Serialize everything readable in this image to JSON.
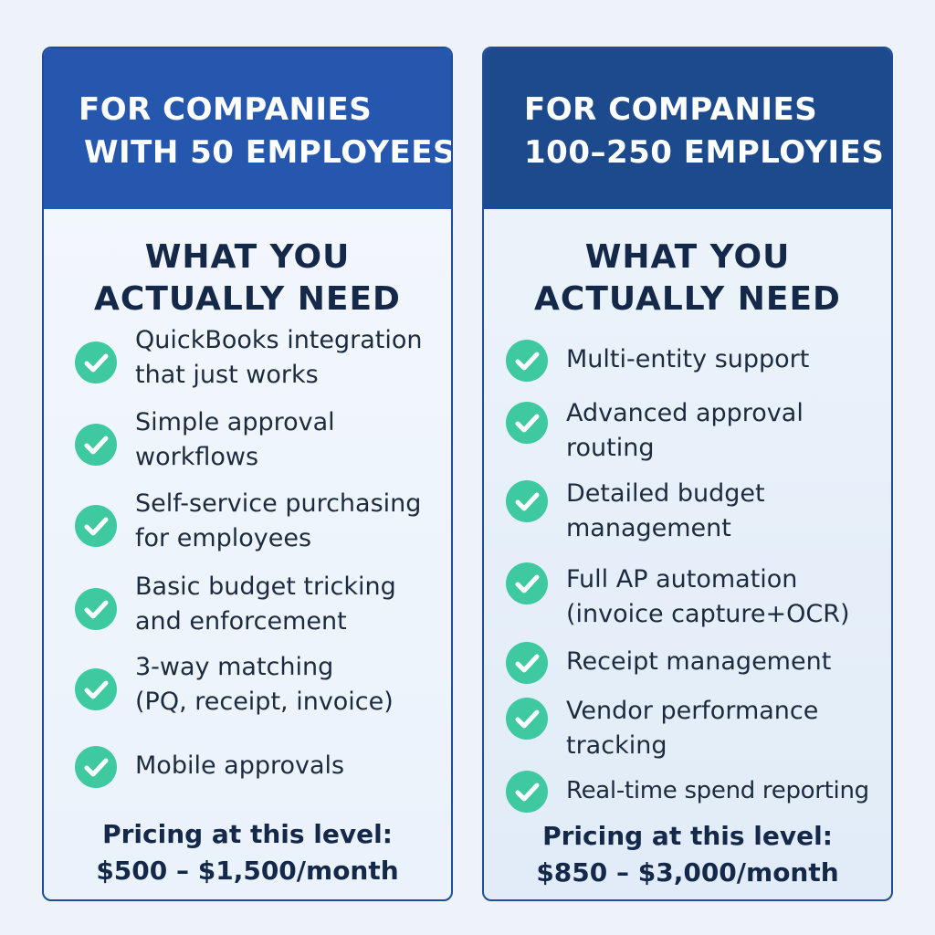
{
  "left_card": {
    "header": [
      "FOR COMPANIES",
      "WITH 50 EMPLOYEES"
    ],
    "needs_title": [
      "WHAT YOU",
      "ACTUALLY NEED"
    ],
    "features": [
      "QuickBooks integration\nthat just works",
      "Simple approval\nworkflows",
      "Self-service purchasing\nfor employees",
      "Basic budget tricking\nand enforcement",
      "3-way matching\n(PQ, receipt, invoice)",
      "Mobile approvals"
    ],
    "pricing_label": "Pricing at this level:",
    "pricing_value": "$500 – $1,500/month"
  },
  "right_card": {
    "header": [
      "FOR COMPANIES",
      "100–250 EMPLOYIES"
    ],
    "needs_title": [
      "WHAT YOU",
      "ACTUALLY NEED"
    ],
    "features": [
      "Multi-entity support",
      "Advanced approval\nrouting",
      "Detailed budget\nmanagement",
      "Full AP automation\n(invoice capture+OCR)",
      "Receipt management",
      "Vendor performance\ntracking",
      "Real-time spend reporting"
    ],
    "pricing_label": "Pricing at this level:",
    "pricing_value": "$850 – $3,000/month"
  },
  "colors": {
    "left_header": "#2457ad",
    "right_header": "#1c4a8c",
    "check": "#3ec9a0",
    "title_text": "#14284a"
  },
  "icons": {
    "feature_bullet": "check-circle-icon"
  }
}
